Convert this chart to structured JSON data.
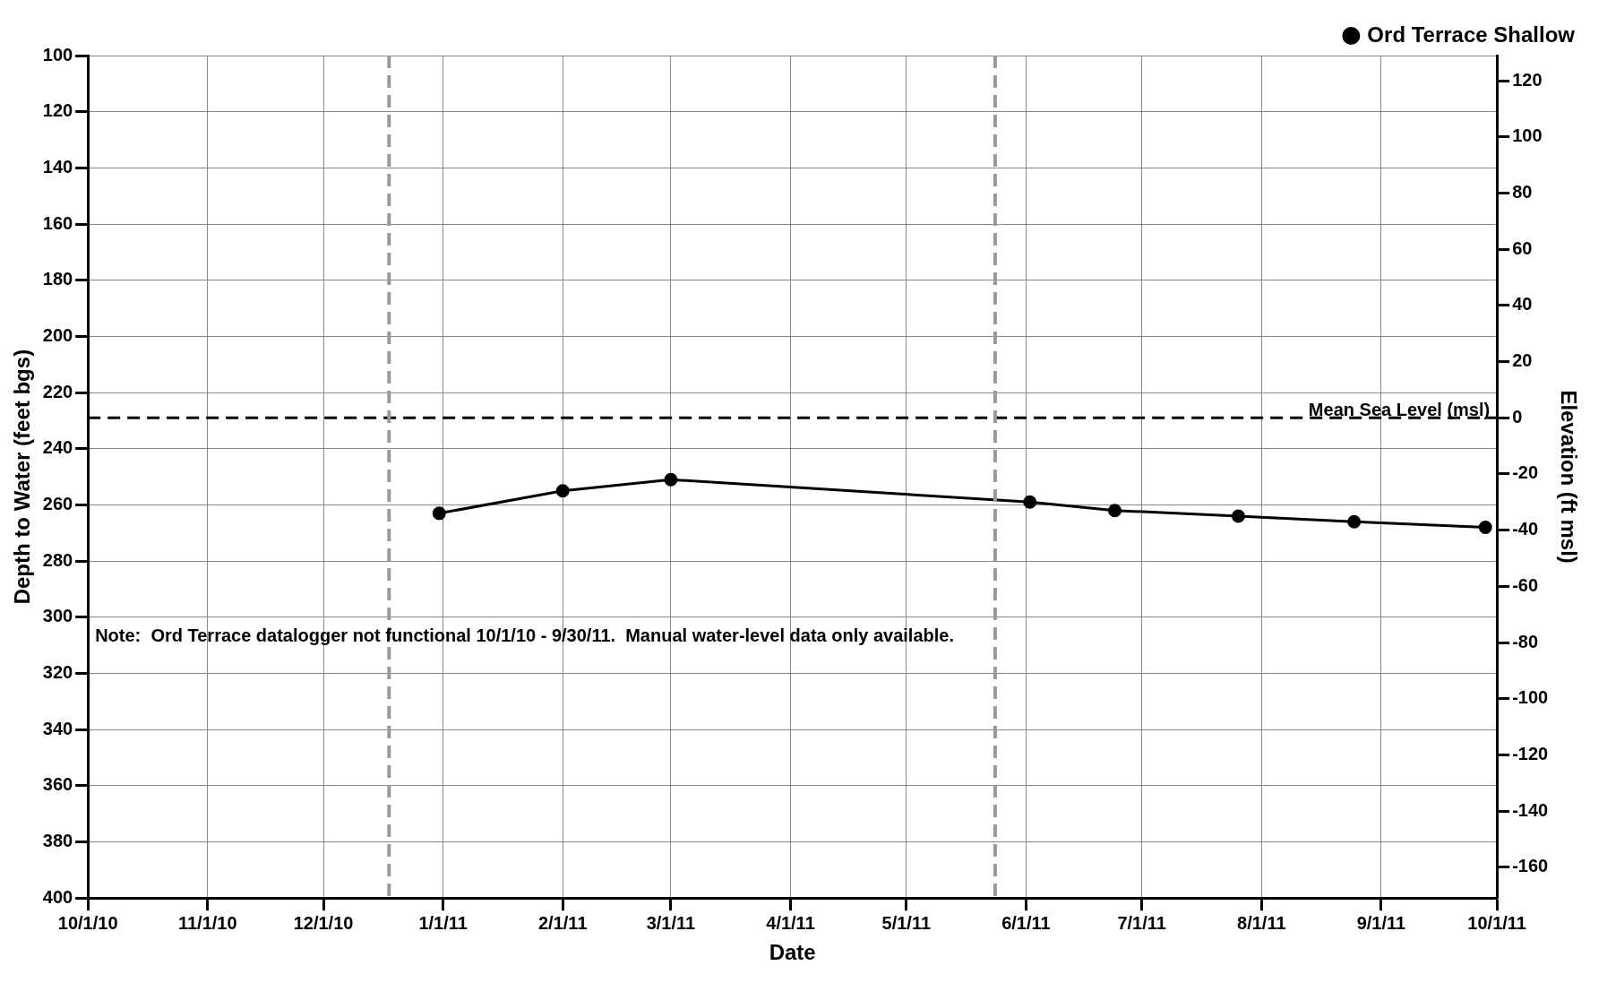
{
  "chart_data": {
    "type": "line",
    "xlabel": "Date",
    "ylabel": "Depth to Water (feet bgs)",
    "y2label": "Elevation (ft msl)",
    "x": [
      "2010-12-31",
      "2011-02-01",
      "2011-03-01",
      "2011-06-02",
      "2011-06-24",
      "2011-07-26",
      "2011-08-25",
      "2011-09-28"
    ],
    "series": [
      {
        "name": "Ord Terrace Shallow",
        "color": "#000000",
        "values": [
          263,
          255,
          251,
          259,
          262,
          264,
          266,
          268
        ]
      }
    ],
    "xlim": [
      "2010-10-01",
      "2011-10-01"
    ],
    "xticks": [
      {
        "value": "2010-10-01",
        "label": "10/1/10"
      },
      {
        "value": "2010-11-01",
        "label": "11/1/10"
      },
      {
        "value": "2010-12-01",
        "label": "12/1/10"
      },
      {
        "value": "2011-01-01",
        "label": "1/1/11"
      },
      {
        "value": "2011-02-01",
        "label": "2/1/11"
      },
      {
        "value": "2011-03-01",
        "label": "3/1/11"
      },
      {
        "value": "2011-04-01",
        "label": "4/1/11"
      },
      {
        "value": "2011-05-01",
        "label": "5/1/11"
      },
      {
        "value": "2011-06-01",
        "label": "6/1/11"
      },
      {
        "value": "2011-07-01",
        "label": "7/1/11"
      },
      {
        "value": "2011-08-01",
        "label": "8/1/11"
      },
      {
        "value": "2011-09-01",
        "label": "9/1/11"
      },
      {
        "value": "2011-10-01",
        "label": "10/1/11"
      }
    ],
    "ylim": [
      400,
      100
    ],
    "yticks": [
      100,
      120,
      140,
      160,
      180,
      200,
      220,
      240,
      260,
      280,
      300,
      320,
      340,
      360,
      380,
      400
    ],
    "y2lim": [
      -171,
      129
    ],
    "y2ticks": [
      120,
      100,
      80,
      60,
      40,
      20,
      0,
      -20,
      -40,
      -60,
      -80,
      -100,
      -120,
      -140,
      -160
    ],
    "ref_lines": [
      {
        "axis": "y2",
        "value": 0,
        "label": "Mean Sea Level (msl)",
        "color": "#000000",
        "line_style": "dashed"
      },
      {
        "axis": "x",
        "value": "2010-12-18",
        "color": "#999999",
        "line_style": "dashed"
      },
      {
        "axis": "x",
        "value": "2011-05-24",
        "color": "#999999",
        "line_style": "dashed"
      }
    ],
    "annotations": [
      "Note:  Ord Terrace datalogger not functional 10/1/10 - 9/30/11.  Manual water-level data only available."
    ],
    "grid": true,
    "legend": "top right",
    "marker": "circle",
    "line_style": "solid"
  }
}
